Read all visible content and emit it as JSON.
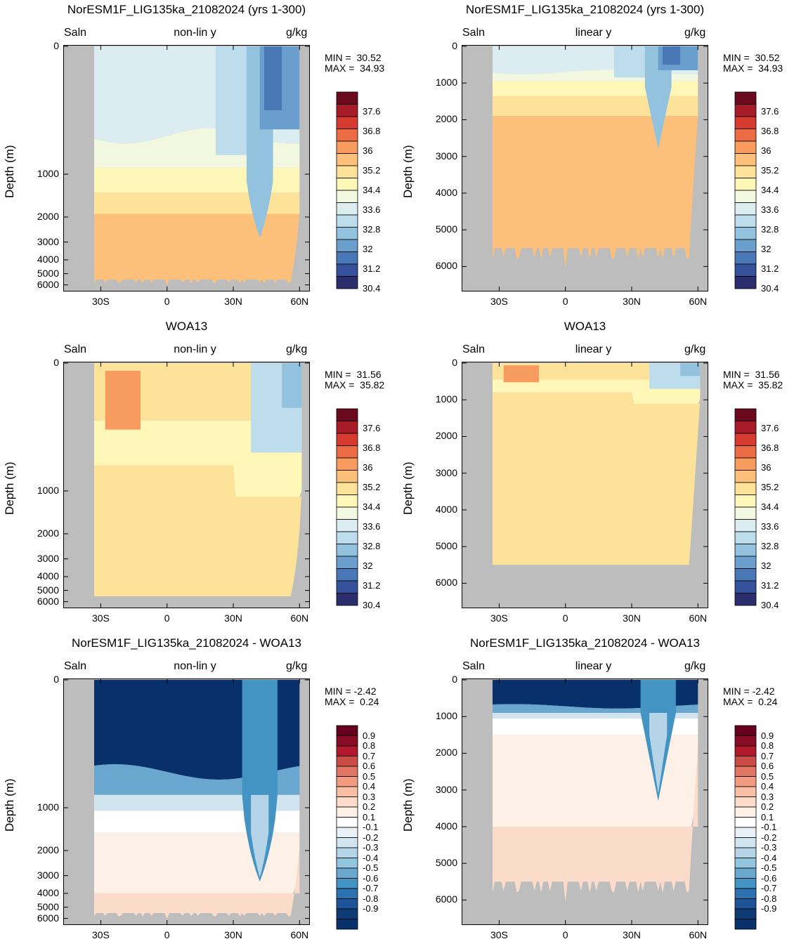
{
  "chart_data": [
    {
      "type": "heatmap",
      "title": "NorESM1F_LIG135ka_21082024 (yrs 1-300)",
      "left_label": "Saln",
      "center_label": "non-lin y",
      "right_label": "g/kg",
      "ylabel": "Depth (m)",
      "yticks": [
        "0",
        "1000",
        "2000",
        "3000",
        "4000",
        "5000",
        "6000"
      ],
      "xticks": [
        "30S",
        "0",
        "30N",
        "60N"
      ],
      "xlim": [
        -40,
        65
      ],
      "ylim": [
        0,
        6500
      ],
      "min_label": "MIN =  30.52",
      "max_label": "MAX =  34.93",
      "colorbar": [
        "37.6",
        "36.8",
        "36",
        "35.2",
        "34.4",
        "33.6",
        "32.8",
        "32",
        "31.2",
        "30.4"
      ]
    },
    {
      "type": "heatmap",
      "title": "NorESM1F_LIG135ka_21082024 (yrs 1-300)",
      "left_label": "Saln",
      "center_label": "linear y",
      "right_label": "g/kg",
      "ylabel": "Depth (m)",
      "yticks": [
        "0",
        "1000",
        "2000",
        "3000",
        "4000",
        "5000",
        "6000"
      ],
      "xticks": [
        "30S",
        "0",
        "30N",
        "60N"
      ],
      "xlim": [
        -40,
        65
      ],
      "ylim": [
        0,
        6500
      ],
      "min_label": "MIN =  30.52",
      "max_label": "MAX =  34.93",
      "colorbar": [
        "37.6",
        "36.8",
        "36",
        "35.2",
        "34.4",
        "33.6",
        "32.8",
        "32",
        "31.2",
        "30.4"
      ]
    },
    {
      "type": "heatmap",
      "title": "WOA13",
      "left_label": "Saln",
      "center_label": "non-lin y",
      "right_label": "g/kg",
      "ylabel": "Depth (m)",
      "yticks": [
        "0",
        "1000",
        "2000",
        "3000",
        "4000",
        "5000",
        "6000"
      ],
      "xticks": [
        "30S",
        "0",
        "30N",
        "60N"
      ],
      "xlim": [
        -40,
        65
      ],
      "ylim": [
        0,
        6500
      ],
      "min_label": "MIN =  31.56",
      "max_label": "MAX =  35.82",
      "colorbar": [
        "37.6",
        "36.8",
        "36",
        "35.2",
        "34.4",
        "33.6",
        "32.8",
        "32",
        "31.2",
        "30.4"
      ]
    },
    {
      "type": "heatmap",
      "title": "WOA13",
      "left_label": "Saln",
      "center_label": "linear y",
      "right_label": "g/kg",
      "ylabel": "Depth (m)",
      "yticks": [
        "0",
        "1000",
        "2000",
        "3000",
        "4000",
        "5000",
        "6000"
      ],
      "xticks": [
        "30S",
        "0",
        "30N",
        "60N"
      ],
      "xlim": [
        -40,
        65
      ],
      "ylim": [
        0,
        6500
      ],
      "min_label": "MIN =  31.56",
      "max_label": "MAX =  35.82",
      "colorbar": [
        "37.6",
        "36.8",
        "36",
        "35.2",
        "34.4",
        "33.6",
        "32.8",
        "32",
        "31.2",
        "30.4"
      ]
    },
    {
      "type": "heatmap",
      "title": "NorESM1F_LIG135ka_21082024 - WOA13",
      "left_label": "Saln",
      "center_label": "non-lin y",
      "right_label": "g/kg",
      "ylabel": "Depth (m)",
      "yticks": [
        "0",
        "1000",
        "2000",
        "3000",
        "4000",
        "5000",
        "6000"
      ],
      "xticks": [
        "30S",
        "0",
        "30N",
        "60N"
      ],
      "xlim": [
        -40,
        65
      ],
      "ylim": [
        0,
        6500
      ],
      "min_label": "MIN = -2.42",
      "max_label": "MAX =  0.24",
      "colorbar": [
        "0.9",
        "0.8",
        "0.7",
        "0.6",
        "0.5",
        "0.4",
        "0.3",
        "0.2",
        "0.1",
        "-0.1",
        "-0.2",
        "-0.3",
        "-0.4",
        "-0.5",
        "-0.6",
        "-0.7",
        "-0.8",
        "-0.9"
      ]
    },
    {
      "type": "heatmap",
      "title": "NorESM1F_LIG135ka_21082024 - WOA13",
      "left_label": "Saln",
      "center_label": "linear y",
      "right_label": "g/kg",
      "ylabel": "Depth (m)",
      "yticks": [
        "0",
        "1000",
        "2000",
        "3000",
        "4000",
        "5000",
        "6000"
      ],
      "xticks": [
        "30S",
        "0",
        "30N",
        "60N"
      ],
      "xlim": [
        -40,
        65
      ],
      "ylim": [
        0,
        6500
      ],
      "min_label": "MIN = -2.42",
      "max_label": "MAX =  0.24",
      "colorbar": [
        "0.9",
        "0.8",
        "0.7",
        "0.6",
        "0.5",
        "0.4",
        "0.3",
        "0.2",
        "0.1",
        "-0.1",
        "-0.2",
        "-0.3",
        "-0.4",
        "-0.5",
        "-0.6",
        "-0.7",
        "-0.8",
        "-0.9"
      ]
    }
  ],
  "colors": {
    "land": "#bdbdbd",
    "salinity_scale": [
      "#6b0a1d",
      "#a81c2a",
      "#d73b2f",
      "#ec6a44",
      "#f89b5e",
      "#fcc07a",
      "#fde39a",
      "#fef7b8",
      "#f1f8df",
      "#dcedf2",
      "#bddcec",
      "#93c2df",
      "#6a9fcd",
      "#4a78b7",
      "#36529c",
      "#2a2e6c"
    ],
    "anomaly_scale": [
      "#67001f",
      "#8a0b25",
      "#b2182b",
      "#cb4b46",
      "#e07563",
      "#f19b81",
      "#f8bfa4",
      "#fbdccb",
      "#fdf0e6",
      "#ffffff",
      "#e9f1f7",
      "#d1e5f0",
      "#b6d4e8",
      "#92c5de",
      "#6aa7cf",
      "#4393c3",
      "#2c72b0",
      "#1c5497",
      "#0f3b74",
      "#08306b"
    ]
  }
}
